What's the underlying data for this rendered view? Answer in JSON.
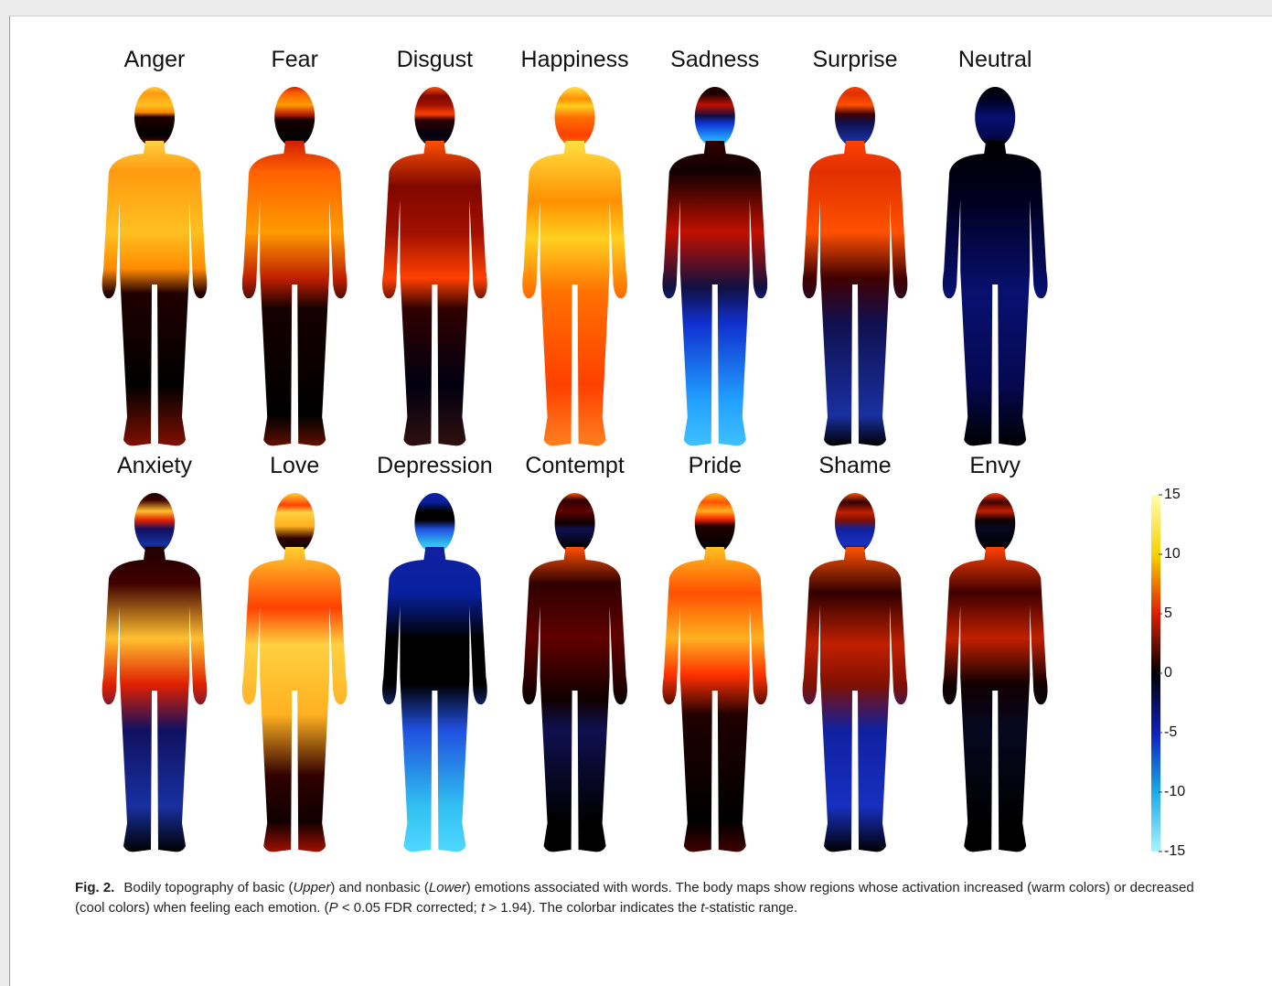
{
  "figure": {
    "rows": [
      {
        "panels": [
          "Anger",
          "Fear",
          "Disgust",
          "Happiness",
          "Sadness",
          "Surprise",
          "Neutral"
        ]
      },
      {
        "panels": [
          "Anxiety",
          "Love",
          "Depression",
          "Contempt",
          "Pride",
          "Shame",
          "Envy"
        ]
      }
    ],
    "colorbar": {
      "ticks": [
        15,
        10,
        5,
        0,
        -5,
        -10,
        -15
      ]
    },
    "caption": {
      "label": "Fig. 2.",
      "parts": [
        "Bodily topography of basic (",
        "Upper",
        ") and nonbasic (",
        "Lower",
        ") emotions associated with words. The body maps show regions whose activation increased (warm colors) or decreased (cool colors) when feeling each emotion. (",
        "P",
        " < 0.05 FDR corrected; ",
        "t",
        " > 1.94). The colorbar indicates the ",
        "t",
        "-statistic range."
      ]
    }
  }
}
